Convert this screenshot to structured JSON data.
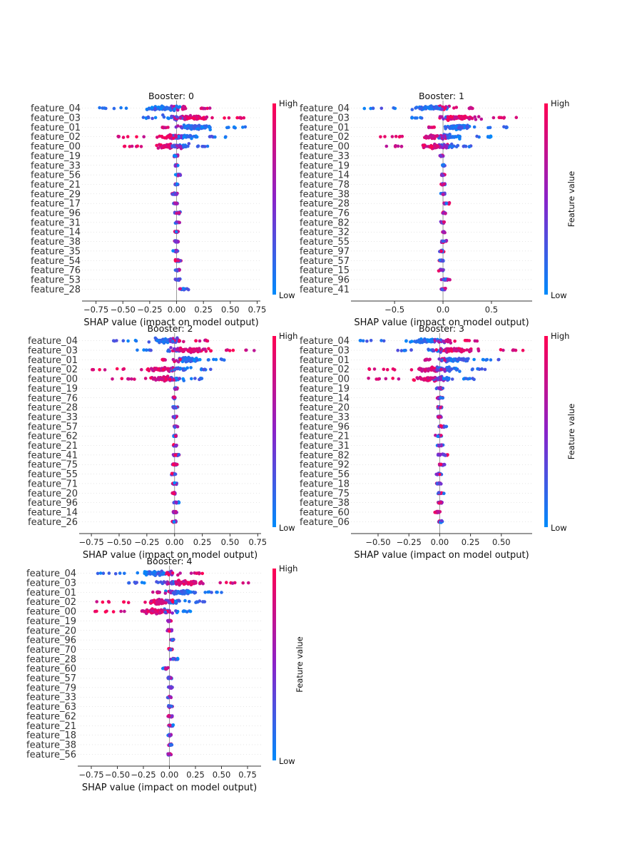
{
  "chart_data": [
    {
      "type": "beeswarm",
      "title": "Booster: 0",
      "xlabel": "SHAP value (impact on model output)",
      "xlim": [
        -0.88,
        0.78
      ],
      "xticks": [
        -0.75,
        -0.5,
        -0.25,
        0.0,
        0.25,
        0.5,
        0.75
      ],
      "xtick_labels": [
        "−0.75",
        "−0.50",
        "−0.25",
        "0.00",
        "0.25",
        "0.50",
        "0.75"
      ],
      "features": [
        "feature_04",
        "feature_03",
        "feature_01",
        "feature_02",
        "feature_00",
        "feature_19",
        "feature_33",
        "feature_56",
        "feature_21",
        "feature_29",
        "feature_17",
        "feature_96",
        "feature_31",
        "feature_14",
        "feature_38",
        "feature_35",
        "feature_54",
        "feature_76",
        "feature_53",
        "feature_28"
      ],
      "ranges": [
        [
          -0.78,
          0.33
        ],
        [
          -0.34,
          0.72
        ],
        [
          -0.14,
          0.66
        ],
        [
          -0.55,
          0.48
        ],
        [
          -0.49,
          0.3
        ],
        [
          -0.04,
          0.02
        ],
        [
          -0.03,
          0.03
        ],
        [
          -0.02,
          0.04
        ],
        [
          -0.03,
          0.03
        ],
        [
          -0.05,
          0.02
        ],
        [
          -0.05,
          0.02
        ],
        [
          -0.03,
          0.05
        ],
        [
          -0.02,
          0.04
        ],
        [
          -0.03,
          0.03
        ],
        [
          -0.03,
          0.03
        ],
        [
          -0.04,
          0.02
        ],
        [
          -0.02,
          0.06
        ],
        [
          -0.02,
          0.04
        ],
        [
          -0.02,
          0.05
        ],
        [
          -0.02,
          0.14
        ]
      ],
      "colorbar": {
        "high": "High",
        "low": "Low",
        "label": "Feature value",
        "label_visible": false
      }
    },
    {
      "type": "beeswarm",
      "title": "Booster: 1",
      "xlabel": "SHAP value (impact on model output)",
      "xlim": [
        -0.95,
        0.92
      ],
      "xticks": [
        -0.5,
        0.0,
        0.5
      ],
      "xtick_labels": [
        "−0.5",
        "0.0",
        "0.5"
      ],
      "features": [
        "feature_04",
        "feature_03",
        "feature_01",
        "feature_02",
        "feature_00",
        "feature_33",
        "feature_19",
        "feature_14",
        "feature_78",
        "feature_38",
        "feature_28",
        "feature_76",
        "feature_82",
        "feature_32",
        "feature_55",
        "feature_97",
        "feature_57",
        "feature_15",
        "feature_96",
        "feature_41"
      ],
      "ranges": [
        [
          -0.82,
          0.33
        ],
        [
          -0.38,
          0.78
        ],
        [
          -0.15,
          0.66
        ],
        [
          -0.7,
          0.52
        ],
        [
          -0.64,
          0.33
        ],
        [
          -0.05,
          0.02
        ],
        [
          -0.02,
          0.03
        ],
        [
          -0.03,
          0.03
        ],
        [
          -0.03,
          0.04
        ],
        [
          -0.03,
          0.03
        ],
        [
          -0.02,
          0.09
        ],
        [
          -0.02,
          0.04
        ],
        [
          -0.03,
          0.03
        ],
        [
          -0.03,
          0.04
        ],
        [
          -0.03,
          0.05
        ],
        [
          -0.04,
          0.02
        ],
        [
          -0.06,
          0.02
        ],
        [
          -0.06,
          0.02
        ],
        [
          -0.02,
          0.09
        ],
        [
          -0.04,
          0.04
        ]
      ],
      "colorbar": {
        "high": "High",
        "low": "Low",
        "label": "Feature value",
        "label_visible": true
      }
    },
    {
      "type": "beeswarm",
      "title": "Booster: 2",
      "xlabel": "SHAP value (impact on model output)",
      "xlim": [
        -0.86,
        0.78
      ],
      "xticks": [
        -0.75,
        -0.5,
        -0.25,
        0.0,
        0.25,
        0.5,
        0.75
      ],
      "xtick_labels": [
        "−0.75",
        "−0.50",
        "−0.25",
        "0.00",
        "0.25",
        "0.50",
        "0.75"
      ],
      "features": [
        "feature_04",
        "feature_03",
        "feature_01",
        "feature_02",
        "feature_00",
        "feature_19",
        "feature_76",
        "feature_28",
        "feature_33",
        "feature_57",
        "feature_62",
        "feature_21",
        "feature_41",
        "feature_75",
        "feature_55",
        "feature_71",
        "feature_20",
        "feature_96",
        "feature_14",
        "feature_26"
      ],
      "ranges": [
        [
          -0.62,
          0.3
        ],
        [
          -0.35,
          0.73
        ],
        [
          -0.13,
          0.5
        ],
        [
          -0.75,
          0.37
        ],
        [
          -0.64,
          0.25
        ],
        [
          -0.02,
          0.04
        ],
        [
          -0.03,
          0.03
        ],
        [
          -0.03,
          0.04
        ],
        [
          -0.03,
          0.03
        ],
        [
          -0.02,
          0.03
        ],
        [
          -0.03,
          0.03
        ],
        [
          -0.03,
          0.03
        ],
        [
          -0.02,
          0.05
        ],
        [
          -0.03,
          0.03
        ],
        [
          -0.05,
          0.03
        ],
        [
          -0.03,
          0.03
        ],
        [
          -0.03,
          0.03
        ],
        [
          -0.02,
          0.06
        ],
        [
          -0.02,
          0.03
        ],
        [
          -0.03,
          0.03
        ]
      ],
      "colorbar": {
        "high": "High",
        "low": "Low",
        "label": "Feature value",
        "label_visible": false
      }
    },
    {
      "type": "beeswarm",
      "title": "Booster: 3",
      "xlabel": "SHAP value (impact on model output)",
      "xlim": [
        -0.72,
        0.75
      ],
      "xticks": [
        -0.5,
        -0.25,
        0.0,
        0.25,
        0.5
      ],
      "xtick_labels": [
        "−0.50",
        "−0.25",
        "0.00",
        "0.25",
        "0.50"
      ],
      "features": [
        "feature_04",
        "feature_03",
        "feature_01",
        "feature_02",
        "feature_00",
        "feature_19",
        "feature_14",
        "feature_20",
        "feature_33",
        "feature_96",
        "feature_21",
        "feature_31",
        "feature_82",
        "feature_92",
        "feature_56",
        "feature_18",
        "feature_75",
        "feature_38",
        "feature_60",
        "feature_06"
      ],
      "ranges": [
        [
          -0.68,
          0.33
        ],
        [
          -0.35,
          0.68
        ],
        [
          -0.13,
          0.55
        ],
        [
          -0.62,
          0.43
        ],
        [
          -0.58,
          0.28
        ],
        [
          -0.03,
          0.04
        ],
        [
          -0.03,
          0.04
        ],
        [
          -0.03,
          0.03
        ],
        [
          -0.03,
          0.03
        ],
        [
          -0.02,
          0.06
        ],
        [
          -0.05,
          0.03
        ],
        [
          -0.03,
          0.04
        ],
        [
          -0.04,
          0.1
        ],
        [
          -0.03,
          0.06
        ],
        [
          -0.04,
          0.03
        ],
        [
          -0.04,
          0.03
        ],
        [
          -0.03,
          0.04
        ],
        [
          -0.03,
          0.03
        ],
        [
          -0.05,
          0.02
        ],
        [
          -0.02,
          0.03
        ]
      ],
      "colorbar": {
        "high": "High",
        "low": "Low",
        "label": "Feature value",
        "label_visible": true
      }
    },
    {
      "type": "beeswarm",
      "title": "Booster: 4",
      "xlabel": "SHAP value (impact on model output)",
      "xlim": [
        -0.88,
        0.88
      ],
      "xticks": [
        -0.75,
        -0.5,
        -0.25,
        0.0,
        0.25,
        0.5,
        0.75
      ],
      "xtick_labels": [
        "−0.75",
        "−0.50",
        "−0.25",
        "0.00",
        "0.25",
        "0.50",
        "0.75"
      ],
      "features": [
        "feature_04",
        "feature_03",
        "feature_01",
        "feature_02",
        "feature_00",
        "feature_19",
        "feature_20",
        "feature_96",
        "feature_70",
        "feature_28",
        "feature_60",
        "feature_57",
        "feature_79",
        "feature_33",
        "feature_63",
        "feature_62",
        "feature_21",
        "feature_18",
        "feature_38",
        "feature_56"
      ],
      "ranges": [
        [
          -0.77,
          0.32
        ],
        [
          -0.42,
          0.77
        ],
        [
          -0.16,
          0.53
        ],
        [
          -0.7,
          0.39
        ],
        [
          -0.77,
          0.22
        ],
        [
          -0.03,
          0.03
        ],
        [
          -0.03,
          0.04
        ],
        [
          -0.02,
          0.07
        ],
        [
          -0.02,
          0.04
        ],
        [
          -0.02,
          0.12
        ],
        [
          -0.08,
          0.02
        ],
        [
          -0.03,
          0.04
        ],
        [
          -0.02,
          0.04
        ],
        [
          -0.03,
          0.03
        ],
        [
          -0.03,
          0.04
        ],
        [
          -0.02,
          0.04
        ],
        [
          -0.02,
          0.04
        ],
        [
          -0.03,
          0.04
        ],
        [
          -0.02,
          0.04
        ],
        [
          -0.03,
          0.03
        ]
      ],
      "colorbar": {
        "high": "High",
        "low": "Low",
        "label": "Feature value",
        "label_visible": true
      }
    }
  ]
}
